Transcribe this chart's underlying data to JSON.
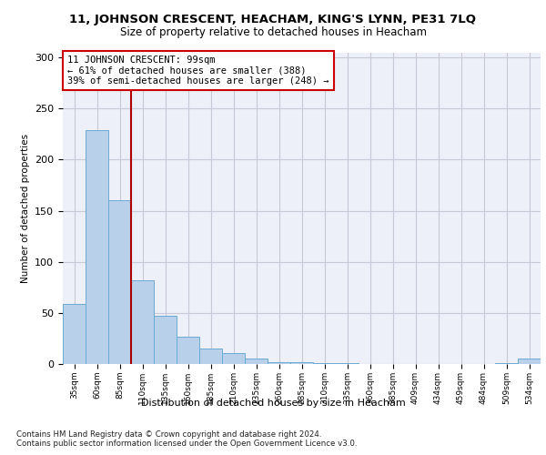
{
  "title": "11, JOHNSON CRESCENT, HEACHAM, KING'S LYNN, PE31 7LQ",
  "subtitle": "Size of property relative to detached houses in Heacham",
  "xlabel": "Distribution of detached houses by size in Heacham",
  "ylabel": "Number of detached properties",
  "categories": [
    "35sqm",
    "60sqm",
    "85sqm",
    "110sqm",
    "135sqm",
    "160sqm",
    "185sqm",
    "210sqm",
    "235sqm",
    "260sqm",
    "285sqm",
    "310sqm",
    "335sqm",
    "360sqm",
    "385sqm",
    "409sqm",
    "434sqm",
    "459sqm",
    "484sqm",
    "509sqm",
    "534sqm"
  ],
  "values": [
    59,
    229,
    160,
    82,
    47,
    27,
    15,
    11,
    5,
    2,
    2,
    1,
    1,
    0,
    0,
    0,
    0,
    0,
    0,
    1,
    5
  ],
  "bar_color": "#b8d0ea",
  "bar_edge_color": "#6aaad4",
  "vline_x": 2.5,
  "vline_color": "#aa0000",
  "annotation_text": "11 JOHNSON CRESCENT: 99sqm\n← 61% of detached houses are smaller (388)\n39% of semi-detached houses are larger (248) →",
  "annotation_box_color": "#ffffff",
  "annotation_box_edge": "#cc0000",
  "ylim": [
    0,
    305
  ],
  "yticks": [
    0,
    50,
    100,
    150,
    200,
    250,
    300
  ],
  "grid_color": "#c8c8d8",
  "background_color": "#edf0f8",
  "footer_line1": "Contains HM Land Registry data © Crown copyright and database right 2024.",
  "footer_line2": "Contains public sector information licensed under the Open Government Licence v3.0."
}
